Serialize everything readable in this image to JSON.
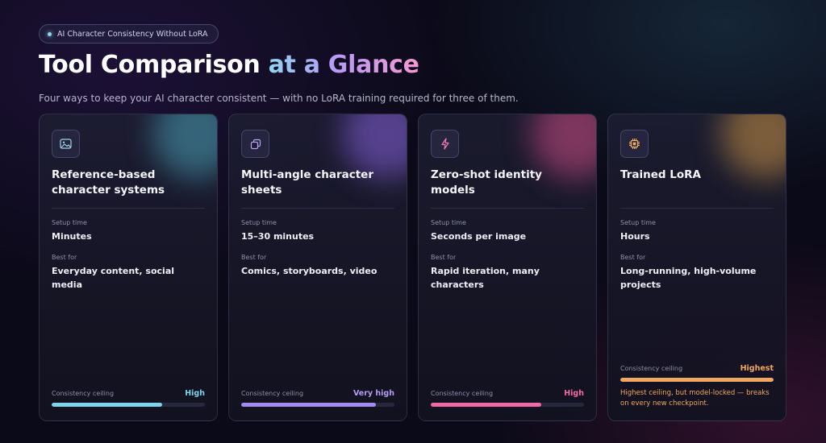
{
  "badge": {
    "label": "AI Character Consistency Without LoRA"
  },
  "header": {
    "title_main": "Tool Comparison ",
    "title_accent": "at a Glance",
    "subtitle": "Four ways to keep your AI character consistent — with no LoRA training required for three of them."
  },
  "labels": {
    "setup": "Setup time",
    "best": "Best for",
    "ceiling": "Consistency ceiling"
  },
  "cards": [
    {
      "icon": "image-icon",
      "title": "Reference-based character systems",
      "setup": "Minutes",
      "best": "Everyday content, social media",
      "rating": "High",
      "level": 0.72,
      "accent": "#7fd3ea",
      "glow": "#3e7e93"
    },
    {
      "icon": "copy-icon",
      "title": "Multi-angle character sheets",
      "setup": "15–30 minutes",
      "best": "Comics, storyboards, video",
      "rating": "Very high",
      "level": 0.88,
      "accent": "#a48bf0",
      "glow": "#6a4fb0"
    },
    {
      "icon": "lightning-icon",
      "title": "Zero-shot identity models",
      "setup": "Seconds per image",
      "best": "Rapid iteration, many characters",
      "rating": "High",
      "level": 0.72,
      "accent": "#f06aa8",
      "glow": "#a04070"
    },
    {
      "icon": "chip-icon",
      "title": "Trained LoRA",
      "setup": "Hours",
      "best": "Long-running, high-volume projects",
      "rating": "Highest",
      "level": 1.0,
      "accent": "#f0a860",
      "glow": "#9c7440",
      "note": "Highest ceiling, but model-locked — breaks on every new checkpoint."
    }
  ]
}
